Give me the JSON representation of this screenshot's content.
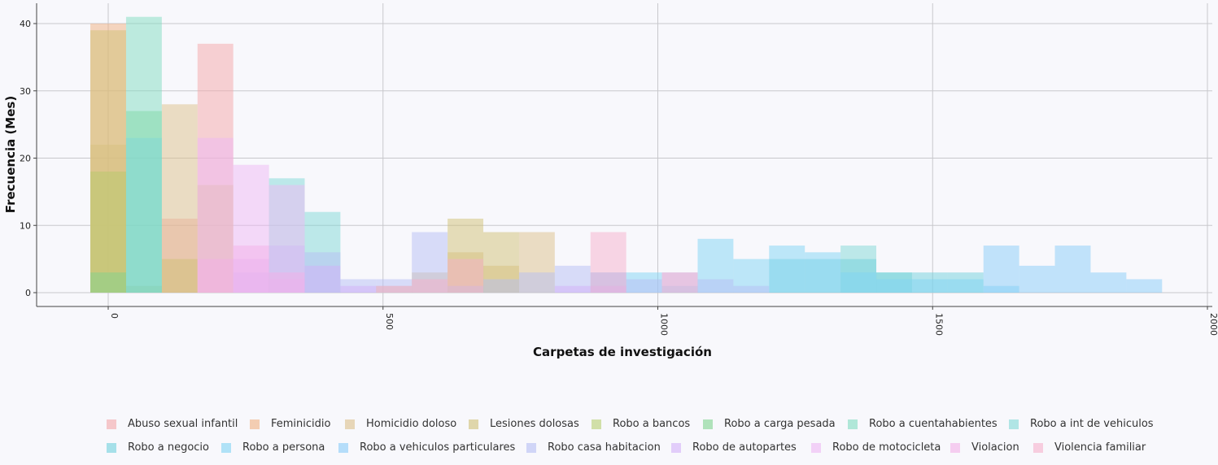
{
  "chart_data": {
    "type": "histogram",
    "title": "",
    "xlabel": "Carpetas de investigación",
    "ylabel": "Frecuencia (Mes)",
    "xlim": [
      -130,
      2000
    ],
    "ylim": [
      -2,
      43
    ],
    "x_ticks": [
      0,
      500,
      1000,
      1500,
      2000
    ],
    "y_ticks": [
      0,
      10,
      20,
      30,
      40
    ],
    "grid": true,
    "legend_position": "bottom",
    "bin_edges": [
      -32.5,
      32.5,
      97.5,
      162.5,
      227.5,
      292.5,
      357.5,
      422.5,
      487.5,
      552.5,
      617.5,
      682.5,
      747.5,
      812.5,
      877.5,
      942.5,
      1007.5,
      1072.5,
      1137.5,
      1202.5,
      1267.5,
      1332.5,
      1397.5,
      1462.5,
      1527.5,
      1592.5,
      1657.5,
      1722.5,
      1787.5,
      1852.5,
      1917.5
    ],
    "series": [
      {
        "name": "Abuso sexual infantil",
        "color": "#f4a6a8",
        "bins": [
          [
            0,
            18
          ],
          [
            2,
            11
          ],
          [
            3,
            37
          ]
        ]
      },
      {
        "name": "Feminicidio",
        "color": "#f0b080",
        "bins": [
          [
            0,
            40
          ]
        ]
      },
      {
        "name": "Homicidio doloso",
        "color": "#dcc08a",
        "bins": [
          [
            0,
            22
          ],
          [
            1,
            1
          ],
          [
            2,
            28
          ],
          [
            3,
            16
          ],
          [
            8,
            1
          ],
          [
            9,
            3
          ],
          [
            10,
            6
          ],
          [
            11,
            4
          ],
          [
            12,
            9
          ]
        ]
      },
      {
        "name": "Lesiones dolosas",
        "color": "#cfc074",
        "bins": [
          [
            0,
            39
          ],
          [
            1,
            1
          ],
          [
            2,
            5
          ],
          [
            10,
            11
          ],
          [
            11,
            9
          ]
        ]
      },
      {
        "name": "Robo a bancos",
        "color": "#b8cf70",
        "bins": [
          [
            0,
            18
          ]
        ]
      },
      {
        "name": "Robo a carga pesada",
        "color": "#7fd48e",
        "bins": [
          [
            0,
            3
          ],
          [
            1,
            27
          ]
        ]
      },
      {
        "name": "Robo a cuentahabientes",
        "color": "#80dcc0",
        "bins": [
          [
            1,
            41
          ]
        ]
      },
      {
        "name": "Robo a int de vehiculos",
        "color": "#80d8d6",
        "bins": [
          [
            1,
            23
          ],
          [
            5,
            17
          ],
          [
            6,
            12
          ],
          [
            21,
            7
          ],
          [
            22,
            3
          ]
        ]
      },
      {
        "name": "Robo a negocio",
        "color": "#70d0dc",
        "bins": [
          [
            19,
            5
          ],
          [
            20,
            5
          ],
          [
            21,
            5
          ],
          [
            22,
            3
          ],
          [
            23,
            3
          ],
          [
            24,
            3
          ]
        ]
      },
      {
        "name": "Robo a persona",
        "color": "#80d4f4",
        "bins": [
          [
            14,
            3
          ],
          [
            15,
            3
          ],
          [
            16,
            1
          ],
          [
            17,
            8
          ],
          [
            18,
            5
          ],
          [
            19,
            7
          ],
          [
            20,
            6
          ],
          [
            21,
            3
          ],
          [
            22,
            2
          ],
          [
            23,
            2
          ],
          [
            24,
            2
          ],
          [
            25,
            1
          ]
        ]
      },
      {
        "name": "Robo a vehiculos particulares",
        "color": "#88ccf8",
        "bins": [
          [
            25,
            7
          ],
          [
            26,
            4
          ],
          [
            27,
            7
          ],
          [
            28,
            3
          ],
          [
            29,
            2
          ]
        ]
      },
      {
        "name": "Robo casa habitacion",
        "color": "#b6bef4",
        "bins": [
          [
            4,
            3
          ],
          [
            5,
            7
          ],
          [
            6,
            6
          ],
          [
            7,
            2
          ],
          [
            8,
            2
          ],
          [
            9,
            9
          ],
          [
            10,
            1
          ],
          [
            11,
            2
          ],
          [
            12,
            3
          ],
          [
            13,
            4
          ],
          [
            14,
            3
          ],
          [
            15,
            2
          ],
          [
            16,
            3
          ],
          [
            17,
            2
          ],
          [
            18,
            1
          ]
        ]
      },
      {
        "name": "Robo de autopartes",
        "color": "#d4b0f8",
        "bins": [
          [
            4,
            5
          ],
          [
            5,
            2
          ],
          [
            6,
            4
          ],
          [
            7,
            1
          ],
          [
            13,
            1
          ],
          [
            14,
            1
          ]
        ]
      },
      {
        "name": "Robo de motocicleta",
        "color": "#eeb8f4",
        "bins": [
          [
            3,
            23
          ],
          [
            4,
            19
          ],
          [
            5,
            16
          ]
        ]
      },
      {
        "name": "Violacion",
        "color": "#f4b0e8",
        "bins": [
          [
            3,
            5
          ],
          [
            4,
            7
          ],
          [
            5,
            3
          ]
        ]
      },
      {
        "name": "Violencia familiar",
        "color": "#f6b0cc",
        "bins": [
          [
            8,
            1
          ],
          [
            9,
            2
          ],
          [
            10,
            5
          ],
          [
            14,
            9
          ],
          [
            16,
            3
          ]
        ]
      }
    ]
  }
}
